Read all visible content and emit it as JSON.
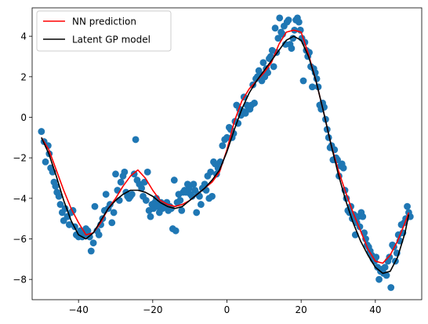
{
  "chart_data": {
    "type": "scatter",
    "title": "",
    "xlabel": "",
    "ylabel": "",
    "xlim": [
      -52.5,
      52.5
    ],
    "ylim": [
      -9.0,
      5.4
    ],
    "xticks": [
      -40,
      -20,
      0,
      20,
      40
    ],
    "xtick_labels": [
      "−40",
      "−20",
      "0",
      "20",
      "40"
    ],
    "yticks": [
      -8,
      -6,
      -4,
      -2,
      0,
      2,
      4
    ],
    "ytick_labels": [
      "−8",
      "−6",
      "−4",
      "−2",
      "0",
      "2",
      "4"
    ],
    "grid": false,
    "legend": {
      "location": "top-left",
      "entries": [
        "NN prediction",
        "Latent GP model"
      ]
    },
    "series": [
      {
        "name": "",
        "kind": "scatter",
        "color": "#1f77b4",
        "points": [
          [
            -50.0,
            -0.7
          ],
          [
            -49.3,
            -1.2
          ],
          [
            -48.9,
            -2.2
          ],
          [
            -48.2,
            -1.4
          ],
          [
            -47.9,
            -1.8
          ],
          [
            -47.5,
            -2.5
          ],
          [
            -47.0,
            -2.7
          ],
          [
            -46.6,
            -3.2
          ],
          [
            -46.2,
            -3.4
          ],
          [
            -45.8,
            -3.7
          ],
          [
            -45.3,
            -3.9
          ],
          [
            -44.9,
            -4.3
          ],
          [
            -44.4,
            -4.7
          ],
          [
            -44.0,
            -5.1
          ],
          [
            -43.6,
            -4.5
          ],
          [
            -43.0,
            -4.9
          ],
          [
            -42.5,
            -5.3
          ],
          [
            -42.0,
            -4.7
          ],
          [
            -41.5,
            -4.6
          ],
          [
            -41.0,
            -5.4
          ],
          [
            -40.6,
            -5.8
          ],
          [
            -40.0,
            -5.9
          ],
          [
            -39.5,
            -5.6
          ],
          [
            -39.0,
            -5.9
          ],
          [
            -38.5,
            -5.8
          ],
          [
            -38.0,
            -5.5
          ],
          [
            -37.5,
            -5.6
          ],
          [
            -37.0,
            -5.9
          ],
          [
            -36.6,
            -6.6
          ],
          [
            -36.0,
            -6.2
          ],
          [
            -35.6,
            -4.4
          ],
          [
            -35.0,
            -5.6
          ],
          [
            -34.5,
            -5.8
          ],
          [
            -34.0,
            -5.3
          ],
          [
            -33.5,
            -5.0
          ],
          [
            -33.0,
            -4.6
          ],
          [
            -32.6,
            -3.8
          ],
          [
            -32.0,
            -4.5
          ],
          [
            -31.5,
            -4.3
          ],
          [
            -31.0,
            -5.2
          ],
          [
            -30.5,
            -4.7
          ],
          [
            -30.0,
            -2.8
          ],
          [
            -29.5,
            -3.6
          ],
          [
            -29.0,
            -4.1
          ],
          [
            -28.6,
            -3.2
          ],
          [
            -28.0,
            -2.9
          ],
          [
            -27.6,
            -2.7
          ],
          [
            -27.2,
            -3.7
          ],
          [
            -26.8,
            -3.9
          ],
          [
            -26.4,
            -4.0
          ],
          [
            -26.0,
            -3.9
          ],
          [
            -25.6,
            -3.8
          ],
          [
            -25.0,
            -2.8
          ],
          [
            -24.6,
            -1.1
          ],
          [
            -24.2,
            -3.1
          ],
          [
            -23.6,
            -3.3
          ],
          [
            -23.0,
            -3.5
          ],
          [
            -22.6,
            -3.9
          ],
          [
            -22.2,
            -3.2
          ],
          [
            -21.8,
            -4.1
          ],
          [
            -21.4,
            -2.7
          ],
          [
            -21.0,
            -4.6
          ],
          [
            -20.6,
            -4.9
          ],
          [
            -20.2,
            -4.3
          ],
          [
            -19.8,
            -4.5
          ],
          [
            -19.4,
            -4.2
          ],
          [
            -19.0,
            -4.0
          ],
          [
            -18.6,
            -4.4
          ],
          [
            -18.2,
            -4.7
          ],
          [
            -17.8,
            -4.2
          ],
          [
            -17.4,
            -4.5
          ],
          [
            -17.0,
            -4.4
          ],
          [
            -16.6,
            -4.3
          ],
          [
            -16.2,
            -4.2
          ],
          [
            -15.8,
            -4.6
          ],
          [
            -15.4,
            -4.4
          ],
          [
            -15.0,
            -4.5
          ],
          [
            -14.6,
            -5.5
          ],
          [
            -14.2,
            -3.1
          ],
          [
            -13.8,
            -5.6
          ],
          [
            -13.4,
            -4.2
          ],
          [
            -13.0,
            -3.8
          ],
          [
            -12.6,
            -4.1
          ],
          [
            -12.2,
            -4.6
          ],
          [
            -11.8,
            -3.7
          ],
          [
            -11.4,
            -3.6
          ],
          [
            -11.0,
            -3.7
          ],
          [
            -10.6,
            -3.3
          ],
          [
            -10.2,
            -3.5
          ],
          [
            -9.8,
            -3.8
          ],
          [
            -9.4,
            -3.9
          ],
          [
            -9.0,
            -3.3
          ],
          [
            -8.6,
            -3.6
          ],
          [
            -8.2,
            -4.7
          ],
          [
            -7.8,
            -3.8
          ],
          [
            -7.4,
            -3.9
          ],
          [
            -7.0,
            -4.3
          ],
          [
            -6.6,
            -3.5
          ],
          [
            -6.0,
            -3.3
          ],
          [
            -5.6,
            -3.6
          ],
          [
            -5.2,
            -2.9
          ],
          [
            -4.8,
            -4.0
          ],
          [
            -4.4,
            -2.7
          ],
          [
            -4.0,
            -3.9
          ],
          [
            -3.6,
            -2.2
          ],
          [
            -3.2,
            -2.3
          ],
          [
            -2.8,
            -2.8
          ],
          [
            -2.4,
            -2.5
          ],
          [
            -1.8,
            -2.2
          ],
          [
            -1.2,
            -1.4
          ],
          [
            -0.6,
            -1.1
          ],
          [
            0.0,
            -1.0
          ],
          [
            0.6,
            -0.5
          ],
          [
            1.0,
            -0.6
          ],
          [
            1.4,
            -1.0
          ],
          [
            1.8,
            -0.8
          ],
          [
            2.2,
            -0.2
          ],
          [
            2.6,
            0.6
          ],
          [
            3.0,
            -0.3
          ],
          [
            3.4,
            0.4
          ],
          [
            3.8,
            0.1
          ],
          [
            4.2,
            0.3
          ],
          [
            4.6,
            1.0
          ],
          [
            5.0,
            0.2
          ],
          [
            5.4,
            0.6
          ],
          [
            5.8,
            0.4
          ],
          [
            6.2,
            0.4
          ],
          [
            6.6,
            0.6
          ],
          [
            7.0,
            1.6
          ],
          [
            7.4,
            0.7
          ],
          [
            7.8,
            1.9
          ],
          [
            8.2,
            2.0
          ],
          [
            8.6,
            2.3
          ],
          [
            9.0,
            2.1
          ],
          [
            9.4,
            1.8
          ],
          [
            9.8,
            2.7
          ],
          [
            10.2,
            2.0
          ],
          [
            10.6,
            2.4
          ],
          [
            11.0,
            2.2
          ],
          [
            11.4,
            2.9
          ],
          [
            11.8,
            3.0
          ],
          [
            12.2,
            3.3
          ],
          [
            12.6,
            2.5
          ],
          [
            13.0,
            4.4
          ],
          [
            13.4,
            3.2
          ],
          [
            13.8,
            3.9
          ],
          [
            14.2,
            4.9
          ],
          [
            14.6,
            4.2
          ],
          [
            15.0,
            4.1
          ],
          [
            15.4,
            4.5
          ],
          [
            15.8,
            3.6
          ],
          [
            16.2,
            4.7
          ],
          [
            16.6,
            4.8
          ],
          [
            17.0,
            3.6
          ],
          [
            17.4,
            3.4
          ],
          [
            17.8,
            3.9
          ],
          [
            18.2,
            4.3
          ],
          [
            18.6,
            4.8
          ],
          [
            19.0,
            4.9
          ],
          [
            19.4,
            4.7
          ],
          [
            19.8,
            4.3
          ],
          [
            20.2,
            3.9
          ],
          [
            20.6,
            1.8
          ],
          [
            21.0,
            3.7
          ],
          [
            21.4,
            3.3
          ],
          [
            21.8,
            3.0
          ],
          [
            22.2,
            3.2
          ],
          [
            22.6,
            2.5
          ],
          [
            23.0,
            1.5
          ],
          [
            23.4,
            2.4
          ],
          [
            23.8,
            2.2
          ],
          [
            24.2,
            1.9
          ],
          [
            24.6,
            1.5
          ],
          [
            25.0,
            0.6
          ],
          [
            25.4,
            0.4
          ],
          [
            25.8,
            0.7
          ],
          [
            26.2,
            0.5
          ],
          [
            26.6,
            -0.1
          ],
          [
            27.0,
            -0.6
          ],
          [
            27.4,
            -1.0
          ],
          [
            27.8,
            -1.5
          ],
          [
            28.2,
            -1.4
          ],
          [
            28.6,
            -2.1
          ],
          [
            29.0,
            -1.6
          ],
          [
            29.4,
            -2.0
          ],
          [
            29.8,
            -2.1
          ],
          [
            30.2,
            -2.9
          ],
          [
            30.6,
            -2.4
          ],
          [
            31.0,
            -2.3
          ],
          [
            31.4,
            -2.5
          ],
          [
            31.8,
            -3.6
          ],
          [
            32.2,
            -4.0
          ],
          [
            32.6,
            -4.6
          ],
          [
            33.0,
            -4.7
          ],
          [
            33.4,
            -4.4
          ],
          [
            33.8,
            -5.0
          ],
          [
            34.2,
            -4.8
          ],
          [
            34.6,
            -5.8
          ],
          [
            35.0,
            -5.2
          ],
          [
            35.4,
            -4.9
          ],
          [
            35.8,
            -5.4
          ],
          [
            36.2,
            -4.7
          ],
          [
            36.6,
            -4.9
          ],
          [
            37.0,
            -5.7
          ],
          [
            37.4,
            -6.0
          ],
          [
            37.8,
            -6.3
          ],
          [
            38.2,
            -6.4
          ],
          [
            38.6,
            -6.6
          ],
          [
            39.0,
            -6.8
          ],
          [
            39.4,
            -7.0
          ],
          [
            39.8,
            -7.1
          ],
          [
            40.2,
            -6.9
          ],
          [
            40.6,
            -7.4
          ],
          [
            41.0,
            -8.0
          ],
          [
            41.4,
            -7.6
          ],
          [
            41.8,
            -7.5
          ],
          [
            42.2,
            -7.7
          ],
          [
            42.6,
            -7.4
          ],
          [
            43.0,
            -7.8
          ],
          [
            43.4,
            -7.1
          ],
          [
            43.8,
            -6.9
          ],
          [
            44.2,
            -8.4
          ],
          [
            44.6,
            -6.3
          ],
          [
            45.0,
            -6.4
          ],
          [
            45.4,
            -7.1
          ],
          [
            45.8,
            -6.7
          ],
          [
            46.2,
            -5.8
          ],
          [
            46.6,
            -6.1
          ],
          [
            47.0,
            -5.3
          ],
          [
            47.4,
            -5.7
          ],
          [
            47.8,
            -5.2
          ],
          [
            48.2,
            -5.0
          ],
          [
            48.6,
            -4.4
          ],
          [
            49.0,
            -4.7
          ],
          [
            49.4,
            -4.9
          ]
        ]
      },
      {
        "name": "NN prediction",
        "kind": "line",
        "color": "#ff0000",
        "x": [
          -50,
          -48,
          -46,
          -44,
          -42,
          -40,
          -38,
          -36,
          -34,
          -32,
          -30,
          -28,
          -26,
          -24,
          -22,
          -20,
          -18,
          -16,
          -14,
          -12,
          -10,
          -8,
          -6,
          -4,
          -2,
          0,
          2,
          4,
          6,
          8,
          10,
          12,
          14,
          16,
          18,
          20,
          22,
          24,
          26,
          28,
          30,
          32,
          34,
          36,
          38,
          40,
          42,
          44,
          46,
          48,
          49
        ],
        "y": [
          -1.0,
          -1.6,
          -2.6,
          -3.6,
          -4.5,
          -5.2,
          -5.8,
          -5.7,
          -5.2,
          -4.5,
          -4.0,
          -3.4,
          -2.9,
          -2.6,
          -3.0,
          -3.6,
          -4.1,
          -4.3,
          -4.4,
          -4.3,
          -4.1,
          -3.8,
          -3.5,
          -3.2,
          -2.7,
          -1.6,
          -0.2,
          0.8,
          1.4,
          1.8,
          2.2,
          2.7,
          3.6,
          4.2,
          4.3,
          4.2,
          3.1,
          1.8,
          0.3,
          -1.3,
          -2.6,
          -3.7,
          -4.7,
          -5.6,
          -6.5,
          -7.1,
          -7.2,
          -6.8,
          -6.1,
          -5.2,
          -4.7
        ]
      },
      {
        "name": "Latent GP model",
        "kind": "line",
        "color": "#000000",
        "x": [
          -50,
          -48,
          -46,
          -44,
          -42,
          -40,
          -38,
          -36,
          -34,
          -32,
          -30,
          -28,
          -26,
          -24,
          -22,
          -20,
          -18,
          -16,
          -14,
          -12,
          -10,
          -8,
          -6,
          -4,
          -2,
          0,
          2,
          4,
          6,
          8,
          10,
          12,
          14,
          16,
          18,
          20,
          22,
          24,
          26,
          28,
          30,
          32,
          34,
          36,
          38,
          40,
          42,
          44,
          46,
          48,
          49
        ],
        "y": [
          -1.0,
          -1.8,
          -2.9,
          -4.1,
          -5.1,
          -5.8,
          -6.0,
          -5.7,
          -5.1,
          -4.5,
          -4.1,
          -3.8,
          -3.6,
          -3.6,
          -3.7,
          -3.9,
          -4.2,
          -4.4,
          -4.5,
          -4.4,
          -4.1,
          -3.8,
          -3.5,
          -3.1,
          -2.6,
          -1.7,
          -0.6,
          0.4,
          1.2,
          1.8,
          2.3,
          2.8,
          3.3,
          3.8,
          4.0,
          3.8,
          3.0,
          1.8,
          0.3,
          -1.3,
          -2.8,
          -4.1,
          -5.2,
          -6.1,
          -6.8,
          -7.4,
          -7.7,
          -7.6,
          -6.9,
          -5.7,
          -4.8
        ]
      }
    ]
  }
}
